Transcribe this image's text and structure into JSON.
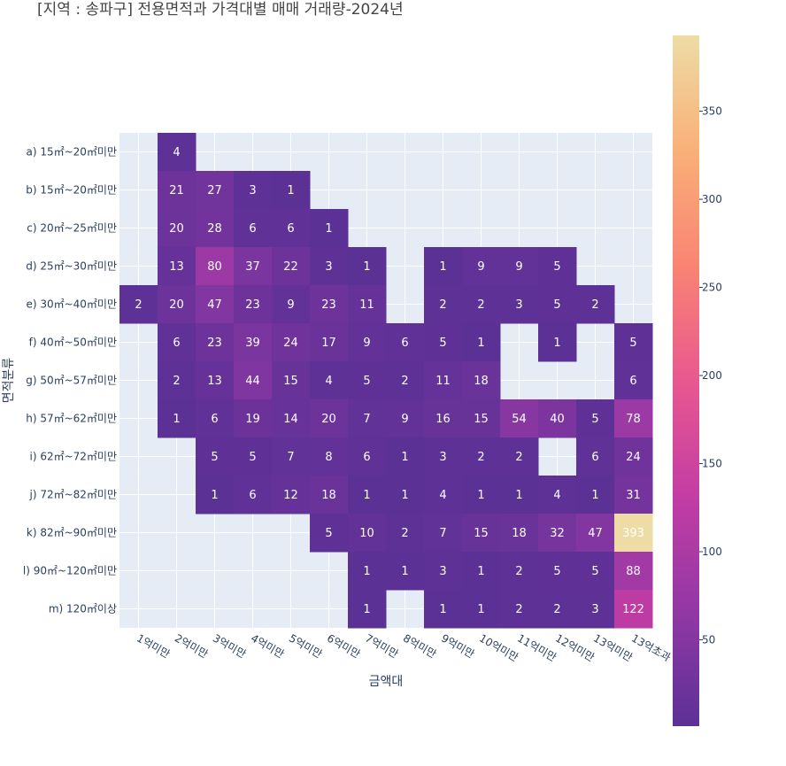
{
  "chart_data": {
    "type": "heatmap",
    "title": "[지역 : 송파구] 전용면적과 가격대별 매매 거래량-2024년",
    "xlabel": "금액대",
    "ylabel": "면적분류",
    "x_categories": [
      "1억미만",
      "2억미만",
      "3억미만",
      "4억미만",
      "5억미만",
      "6억미만",
      "7억미만",
      "8억미만",
      "9억미만",
      "10억미만",
      "11억미만",
      "12억미만",
      "13억미만",
      "13억초과"
    ],
    "y_categories": [
      "a) 15㎡~20㎡미만",
      "b) 15㎡~20㎡미만",
      "c) 20㎡~25㎡미만",
      "d) 25㎡~30㎡미만",
      "e) 30㎡~40㎡미만",
      "f) 40㎡~50㎡미만",
      "g) 50㎡~57㎡미만",
      "h) 57㎡~62㎡미만",
      "i) 62㎡~72㎡미만",
      "j) 72㎡~82㎡미만",
      "k) 82㎡~90㎡미만",
      "l) 90㎡~120㎡미만",
      "m) 120㎡이상"
    ],
    "values": [
      [
        null,
        4,
        null,
        null,
        null,
        null,
        null,
        null,
        null,
        null,
        null,
        null,
        null,
        null
      ],
      [
        null,
        21,
        27,
        3,
        1,
        null,
        null,
        null,
        null,
        null,
        null,
        null,
        null,
        null
      ],
      [
        null,
        20,
        28,
        6,
        6,
        1,
        null,
        null,
        null,
        null,
        null,
        null,
        null,
        null
      ],
      [
        null,
        13,
        80,
        37,
        22,
        3,
        1,
        null,
        1,
        9,
        9,
        5,
        null,
        null
      ],
      [
        2,
        20,
        47,
        23,
        9,
        23,
        11,
        null,
        2,
        2,
        3,
        5,
        2,
        null
      ],
      [
        null,
        6,
        23,
        39,
        24,
        17,
        9,
        6,
        5,
        1,
        null,
        1,
        null,
        5
      ],
      [
        null,
        2,
        13,
        44,
        15,
        4,
        5,
        2,
        11,
        18,
        null,
        null,
        null,
        6
      ],
      [
        null,
        1,
        6,
        19,
        14,
        20,
        7,
        9,
        16,
        15,
        54,
        40,
        5,
        78
      ],
      [
        null,
        null,
        5,
        5,
        7,
        8,
        6,
        1,
        3,
        2,
        2,
        null,
        6,
        24
      ],
      [
        null,
        null,
        1,
        6,
        12,
        18,
        1,
        1,
        4,
        1,
        1,
        4,
        1,
        31
      ],
      [
        null,
        null,
        null,
        null,
        null,
        5,
        10,
        2,
        7,
        15,
        18,
        32,
        47,
        393
      ],
      [
        null,
        null,
        null,
        null,
        null,
        null,
        1,
        1,
        3,
        1,
        2,
        5,
        5,
        88
      ],
      [
        null,
        null,
        null,
        null,
        null,
        null,
        1,
        null,
        1,
        1,
        2,
        2,
        3,
        122
      ]
    ],
    "zmin": 1,
    "zmax": 393,
    "colorbar_ticks": [
      50,
      100,
      150,
      200,
      250,
      300,
      350
    ],
    "colorscale": [
      "#5c3196",
      "#9238a5",
      "#c33da4",
      "#e8588f",
      "#f98473",
      "#f9b078",
      "#eddca5"
    ],
    "grid": true,
    "plot_background": "#e5ecf6",
    "label_color": "#ffffff"
  }
}
